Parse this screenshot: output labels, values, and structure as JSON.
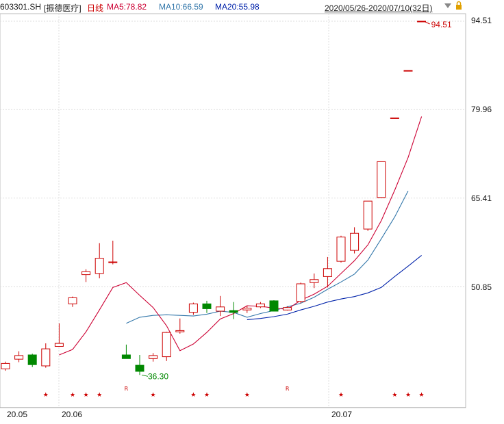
{
  "header": {
    "code": "603301.SH",
    "name": "[振德医疗]",
    "period": "日线",
    "ma5": "MA5:78.82",
    "ma10": "MA10:66.59",
    "ma20": "MA20:55.98",
    "range": "2020/05/26-2020/07/10(32日)",
    "lock_icon": "lock-icon",
    "dropdown_icon": "chevron-down-icon"
  },
  "colors": {
    "up": "#cc0000",
    "down": "#008800",
    "ma5": "#cc0033",
    "ma10": "#3377aa",
    "ma20": "#0022aa",
    "grid": "#dddddd",
    "hi_label": "#cc0000",
    "lo_label": "#008800"
  },
  "chart_data": {
    "type": "candlestick",
    "y_ticks": [
      "94.51",
      "79.96",
      "65.41",
      "50.85"
    ],
    "x_ticks": [
      "20.05",
      "20.06",
      "20.07"
    ],
    "ylim": [
      33,
      97
    ],
    "high_marker": "94.51",
    "low_marker": "36.30",
    "candles": [
      {
        "date": "2020/05/26",
        "o": 37.3,
        "h": 38.5,
        "l": 37.0,
        "c": 38.2
      },
      {
        "date": "2020/05/27",
        "o": 38.9,
        "h": 40.2,
        "l": 38.4,
        "c": 39.5
      },
      {
        "date": "2020/05/28",
        "o": 39.6,
        "h": 39.8,
        "l": 37.6,
        "c": 38.0
      },
      {
        "date": "2020/05/29",
        "o": 37.8,
        "h": 41.5,
        "l": 37.5,
        "c": 40.6
      },
      {
        "date": "2020/06/01",
        "o": 41.0,
        "h": 44.8,
        "l": 41.0,
        "c": 41.5
      },
      {
        "date": "2020/06/02",
        "o": 48.0,
        "h": 49.2,
        "l": 47.5,
        "c": 49.0
      },
      {
        "date": "2020/06/03",
        "o": 52.8,
        "h": 53.7,
        "l": 51.6,
        "c": 53.3
      },
      {
        "date": "2020/06/04",
        "o": 53.0,
        "h": 58.0,
        "l": 52.2,
        "c": 55.5
      },
      {
        "date": "2020/06/05",
        "o": 54.9,
        "h": 58.4,
        "l": 54.5,
        "c": 54.9
      },
      {
        "date": "2020/06/08",
        "o": 39.6,
        "h": 41.3,
        "l": 39.2,
        "c": 39.0
      },
      {
        "date": "2020/06/09",
        "o": 37.9,
        "h": 39.6,
        "l": 36.3,
        "c": 36.9
      },
      {
        "date": "2020/06/10",
        "o": 39.0,
        "h": 39.9,
        "l": 38.5,
        "c": 39.5
      },
      {
        "date": "2020/06/11",
        "o": 39.3,
        "h": 43.4,
        "l": 38.6,
        "c": 43.3
      },
      {
        "date": "2020/06/12",
        "o": 43.4,
        "h": 45.6,
        "l": 43.1,
        "c": 43.6
      },
      {
        "date": "2020/06/15",
        "o": 46.6,
        "h": 48.2,
        "l": 46.2,
        "c": 48.0
      },
      {
        "date": "2020/06/16",
        "o": 48.0,
        "h": 48.5,
        "l": 46.5,
        "c": 47.2
      },
      {
        "date": "2020/06/17",
        "o": 46.8,
        "h": 49.3,
        "l": 46.0,
        "c": 47.5
      },
      {
        "date": "2020/06/18",
        "o": 46.9,
        "h": 48.3,
        "l": 45.5,
        "c": 46.6
      },
      {
        "date": "2020/06/19",
        "o": 47.0,
        "h": 47.7,
        "l": 46.5,
        "c": 47.3
      },
      {
        "date": "2020/06/22",
        "o": 47.5,
        "h": 48.3,
        "l": 47.3,
        "c": 48.0
      },
      {
        "date": "2020/06/23",
        "o": 48.5,
        "h": 48.6,
        "l": 46.8,
        "c": 46.8
      },
      {
        "date": "2020/06/24",
        "o": 47.0,
        "h": 47.6,
        "l": 46.9,
        "c": 47.4
      },
      {
        "date": "2020/06/29",
        "o": 48.4,
        "h": 51.5,
        "l": 48.1,
        "c": 51.3
      },
      {
        "date": "2020/06/30",
        "o": 51.5,
        "h": 53.0,
        "l": 50.6,
        "c": 52.0
      },
      {
        "date": "2020/07/01",
        "o": 52.5,
        "h": 55.7,
        "l": 50.7,
        "c": 53.8
      },
      {
        "date": "2020/07/02",
        "o": 55.0,
        "h": 59.2,
        "l": 54.8,
        "c": 59.0
      },
      {
        "date": "2020/07/03",
        "o": 56.8,
        "h": 60.6,
        "l": 56.3,
        "c": 59.6
      },
      {
        "date": "2020/07/06",
        "o": 60.3,
        "h": 64.9,
        "l": 60.0,
        "c": 64.9
      },
      {
        "date": "2020/07/07",
        "o": 65.5,
        "h": 71.4,
        "l": 65.5,
        "c": 71.4
      },
      {
        "date": "2020/07/08",
        "o": 78.6,
        "h": 78.6,
        "l": 78.6,
        "c": 78.6
      },
      {
        "date": "2020/07/09",
        "o": 86.4,
        "h": 86.4,
        "l": 86.4,
        "c": 86.4
      },
      {
        "date": "2020/07/10",
        "o": 94.51,
        "h": 94.51,
        "l": 94.51,
        "c": 94.51
      }
    ],
    "ma5": [
      null,
      null,
      null,
      null,
      39.6,
      40.5,
      43.4,
      47.0,
      50.7,
      51.5,
      49.4,
      47.4,
      44.4,
      40.3,
      41.4,
      43.3,
      45.5,
      46.4,
      47.7,
      47.6,
      47.3,
      47.1,
      48.6,
      49.6,
      50.9,
      53.0,
      55.1,
      57.7,
      61.7,
      66.7,
      72.1,
      78.82
    ],
    "ma10": [
      null,
      null,
      null,
      null,
      null,
      null,
      null,
      null,
      null,
      44.8,
      45.8,
      46.1,
      46.2,
      46.1,
      46.0,
      46.3,
      46.8,
      46.6,
      45.8,
      46.4,
      46.9,
      47.5,
      48.1,
      49.1,
      50.4,
      51.6,
      52.9,
      55.2,
      58.7,
      62.3,
      66.59,
      null
    ],
    "ma20": [
      null,
      null,
      null,
      null,
      null,
      null,
      null,
      null,
      null,
      null,
      null,
      null,
      null,
      null,
      null,
      null,
      null,
      null,
      45.4,
      45.6,
      45.9,
      46.3,
      47.0,
      47.6,
      48.3,
      48.8,
      49.2,
      49.8,
      50.7,
      52.5,
      54.2,
      55.98
    ],
    "markers": [
      "★",
      "★",
      "★",
      "★",
      "R",
      "★",
      "★",
      "★",
      "★",
      "R",
      "★",
      "★",
      "★",
      "★"
    ]
  }
}
